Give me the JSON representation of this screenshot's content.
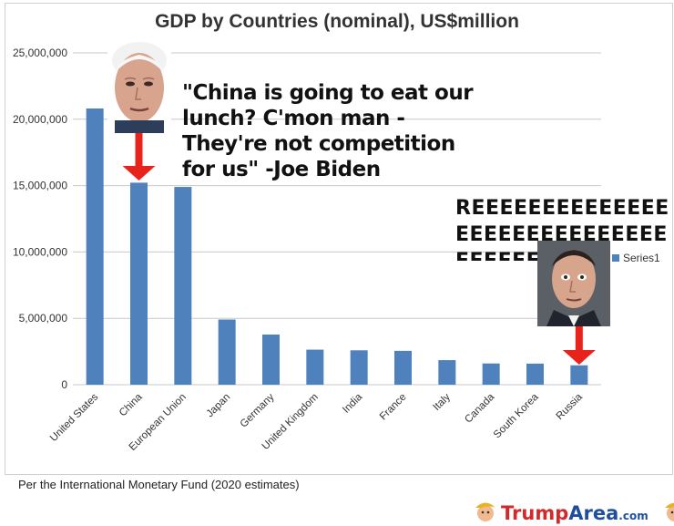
{
  "chart_data": {
    "type": "bar",
    "title": "GDP by Countries (nominal), US$million",
    "categories": [
      "United States",
      "China",
      "European Union",
      "Japan",
      "Germany",
      "United Kingdom",
      "India",
      "France",
      "Italy",
      "Canada",
      "South Korea",
      "Russia"
    ],
    "series": [
      {
        "name": "Series1",
        "values": [
          20810000,
          15220000,
          14900000,
          4910000,
          3780000,
          2640000,
          2590000,
          2550000,
          1850000,
          1600000,
          1590000,
          1460000
        ]
      }
    ],
    "ylim": [
      0,
      25000000
    ],
    "yticks": [
      0,
      5000000,
      10000000,
      15000000,
      20000000,
      25000000
    ],
    "ytick_labels": [
      "0",
      "5,000,000",
      "10,000,000",
      "15,000,000",
      "20,000,000",
      "25,000,000"
    ],
    "grid": true,
    "legend": "right",
    "bar_color": "#4f81bd"
  },
  "annotations": {
    "quote": "\"China is going to eat our lunch? C'mon man - They're not competition for us\" -Joe Biden",
    "reee": "REEEEEEEEEEEEEEEEEEEEEEEEEEEEEEEEEEEEEEEE"
  },
  "footer": {
    "source": "Per the International Monetary Fund (2020 estimates)"
  },
  "watermark": {
    "part1": "Trump",
    "part2": "Area",
    "part3": ".com"
  },
  "colors": {
    "arrow": "#e8231b",
    "grid": "#c8c8c8"
  }
}
